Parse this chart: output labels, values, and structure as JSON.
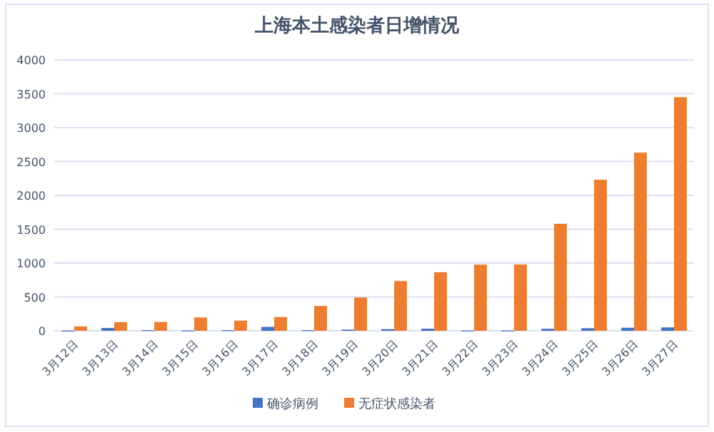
{
  "chart_data": {
    "type": "bar",
    "title": "上海本土感染者日增情况",
    "categories": [
      "3月12日",
      "3月13日",
      "3月14日",
      "3月15日",
      "3月16日",
      "3月17日",
      "3月18日",
      "3月19日",
      "3月20日",
      "3月21日",
      "3月22日",
      "3月23日",
      "3月24日",
      "3月25日",
      "3月26日",
      "3月27日"
    ],
    "series": [
      {
        "name": "确诊病例",
        "color": "#4472c4",
        "values": [
          1,
          41,
          9,
          5,
          8,
          57,
          8,
          17,
          24,
          31,
          4,
          4,
          29,
          38,
          45,
          50
        ]
      },
      {
        "name": "无症状感染者",
        "color": "#ed7d31",
        "values": [
          64,
          128,
          130,
          197,
          150,
          203,
          366,
          492,
          734,
          865,
          977,
          979,
          1580,
          2231,
          2631,
          3450
        ]
      }
    ],
    "ylim": [
      0,
      4000
    ],
    "yticks": [
      0,
      500,
      1000,
      1500,
      2000,
      2500,
      3000,
      3500,
      4000
    ],
    "grid": "y",
    "legend": "bottom"
  }
}
